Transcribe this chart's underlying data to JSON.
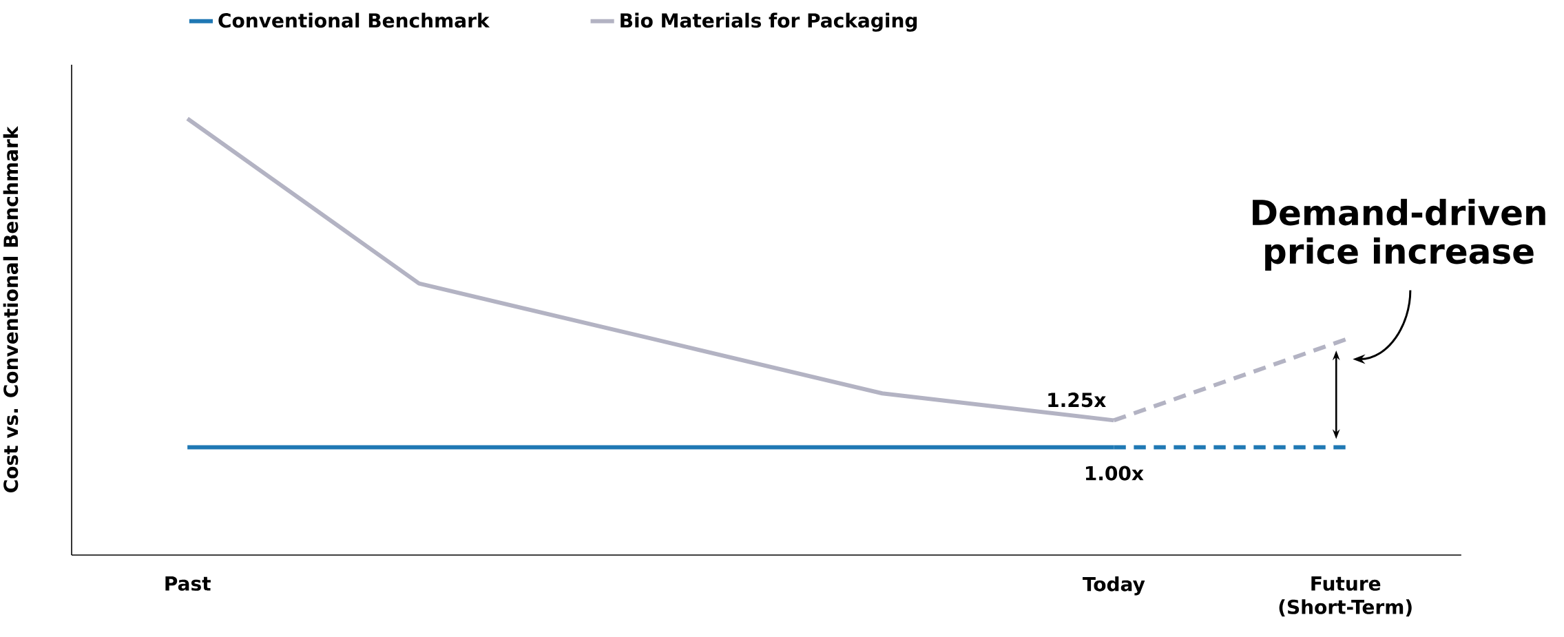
{
  "chart_data": {
    "type": "line",
    "ylabel": "Cost vs. Conventional Benchmark",
    "categories": [
      "Past",
      null,
      null,
      null,
      "Today",
      "Future (Short-Term)"
    ],
    "ylim": [
      0,
      4.55
    ],
    "tick_labels": "x",
    "legend": "top left",
    "grid": false,
    "marker": "none",
    "series": [
      {
        "name": "Conventional Benchmark",
        "color": "#1f78b4",
        "values": [
          1.0,
          1.0,
          1.0,
          1.0,
          1.0,
          null
        ],
        "line_style": "solid",
        "value_labels": [
          null,
          null,
          null,
          null,
          "1.00x",
          null
        ]
      },
      {
        "color": "#1f78b4",
        "values": [
          null,
          null,
          null,
          null,
          1.0,
          1.0
        ],
        "line_style": "dashed"
      },
      {
        "name": "Bio Materials for Packaging",
        "color": "#b3b3c3",
        "values": [
          4.05,
          2.52,
          2.01,
          1.5,
          1.25,
          null
        ],
        "line_style": "solid",
        "value_labels": [
          null,
          null,
          null,
          null,
          "1.25x",
          null
        ]
      },
      {
        "color": "#b3b3c3",
        "values": [
          null,
          null,
          null,
          null,
          1.25,
          2.0
        ],
        "line_style": "dashed"
      }
    ],
    "annotations": [
      "Demand-driven price increase"
    ]
  }
}
